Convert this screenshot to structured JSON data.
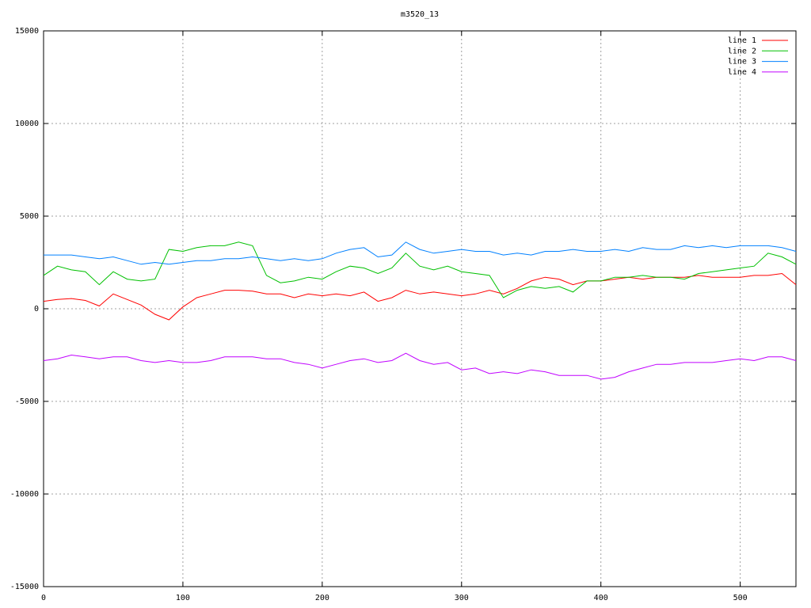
{
  "chart_data": {
    "type": "line",
    "title": "m3520_13",
    "x": [
      0,
      10,
      20,
      30,
      40,
      50,
      60,
      70,
      80,
      90,
      100,
      110,
      120,
      130,
      140,
      150,
      160,
      170,
      180,
      190,
      200,
      210,
      220,
      230,
      240,
      250,
      260,
      270,
      280,
      290,
      300,
      310,
      320,
      330,
      340,
      350,
      360,
      370,
      380,
      390,
      400,
      410,
      420,
      430,
      440,
      450,
      460,
      470,
      480,
      490,
      500,
      510,
      520,
      530,
      540
    ],
    "series": [
      {
        "name": "line 1",
        "color": "#ff0000",
        "values": [
          400,
          500,
          550,
          450,
          150,
          800,
          500,
          200,
          -300,
          -600,
          100,
          600,
          800,
          1000,
          1000,
          950,
          800,
          800,
          600,
          800,
          700,
          800,
          700,
          900,
          400,
          600,
          1000,
          800,
          900,
          800,
          700,
          800,
          1000,
          800,
          1100,
          1500,
          1700,
          1600,
          1300,
          1500,
          1500,
          1600,
          1700,
          1600,
          1700,
          1700,
          1700,
          1800,
          1700,
          1700,
          1700,
          1800,
          1800,
          1900,
          1300
        ]
      },
      {
        "name": "line 2",
        "color": "#00c000",
        "values": [
          1800,
          2300,
          2100,
          2000,
          1300,
          2000,
          1600,
          1500,
          1600,
          3200,
          3100,
          3300,
          3400,
          3400,
          3600,
          3400,
          1800,
          1400,
          1500,
          1700,
          1600,
          2000,
          2300,
          2200,
          1900,
          2200,
          3000,
          2300,
          2100,
          2300,
          2000,
          1900,
          1800,
          600,
          1000,
          1200,
          1100,
          1200,
          900,
          1500,
          1500,
          1700,
          1700,
          1800,
          1700,
          1700,
          1600,
          1900,
          2000,
          2100,
          2200,
          2300,
          3000,
          2800,
          2400
        ]
      },
      {
        "name": "line 3",
        "color": "#0080ff",
        "values": [
          2900,
          2900,
          2900,
          2800,
          2700,
          2800,
          2600,
          2400,
          2500,
          2400,
          2500,
          2600,
          2600,
          2700,
          2700,
          2800,
          2700,
          2600,
          2700,
          2600,
          2700,
          3000,
          3200,
          3300,
          2800,
          2900,
          3600,
          3200,
          3000,
          3100,
          3200,
          3100,
          3100,
          2900,
          3000,
          2900,
          3100,
          3100,
          3200,
          3100,
          3100,
          3200,
          3100,
          3300,
          3200,
          3200,
          3400,
          3300,
          3400,
          3300,
          3400,
          3400,
          3400,
          3300,
          3100
        ]
      },
      {
        "name": "line 4",
        "color": "#c000ff",
        "values": [
          -2800,
          -2700,
          -2500,
          -2600,
          -2700,
          -2600,
          -2600,
          -2800,
          -2900,
          -2800,
          -2900,
          -2900,
          -2800,
          -2600,
          -2600,
          -2600,
          -2700,
          -2700,
          -2900,
          -3000,
          -3200,
          -3000,
          -2800,
          -2700,
          -2900,
          -2800,
          -2400,
          -2800,
          -3000,
          -2900,
          -3300,
          -3200,
          -3500,
          -3400,
          -3500,
          -3300,
          -3400,
          -3600,
          -3600,
          -3600,
          -3800,
          -3700,
          -3400,
          -3200,
          -3000,
          -3000,
          -2900,
          -2900,
          -2900,
          -2800,
          -2700,
          -2800,
          -2600,
          -2600,
          -2800
        ]
      }
    ],
    "xlim": [
      0,
      540
    ],
    "xticks": [
      0,
      100,
      200,
      300,
      400,
      500
    ],
    "ylim": [
      -15000,
      15000
    ],
    "yticks": [
      -15000,
      -10000,
      -5000,
      0,
      5000,
      10000,
      15000
    ],
    "grid": true,
    "legend": "top-right"
  }
}
